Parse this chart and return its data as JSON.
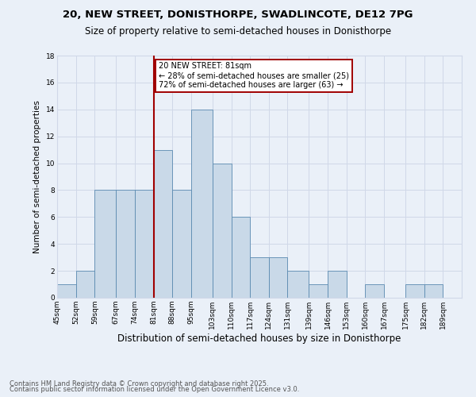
{
  "title1": "20, NEW STREET, DONISTHORPE, SWADLINCOTE, DE12 7PG",
  "title2": "Size of property relative to semi-detached houses in Donisthorpe",
  "xlabel": "Distribution of semi-detached houses by size in Donisthorpe",
  "ylabel": "Number of semi-detached properties",
  "footnote1": "Contains HM Land Registry data © Crown copyright and database right 2025.",
  "footnote2": "Contains public sector information licensed under the Open Government Licence v3.0.",
  "annotation_title": "20 NEW STREET: 81sqm",
  "annotation_line1": "← 28% of semi-detached houses are smaller (25)",
  "annotation_line2": "72% of semi-detached houses are larger (63) →",
  "bar_left_edges": [
    45,
    52,
    59,
    67,
    74,
    81,
    88,
    95,
    103,
    110,
    117,
    124,
    131,
    139,
    146,
    153,
    160,
    167,
    175,
    182
  ],
  "bar_widths": [
    7,
    7,
    8,
    7,
    7,
    7,
    7,
    8,
    7,
    7,
    7,
    7,
    8,
    7,
    7,
    7,
    7,
    8,
    7,
    7
  ],
  "bar_heights": [
    1,
    2,
    8,
    8,
    8,
    11,
    8,
    14,
    10,
    6,
    3,
    3,
    2,
    1,
    2,
    0,
    1,
    0,
    1,
    1
  ],
  "bar_color": "#c9d9e8",
  "bar_edge_color": "#5a8ab0",
  "vline_x": 81,
  "vline_color": "#a00000",
  "grid_color": "#d0d8e8",
  "annotation_box_color": "#ffffff",
  "annotation_box_edge": "#a00000",
  "ylim": [
    0,
    18
  ],
  "yticks": [
    0,
    2,
    4,
    6,
    8,
    10,
    12,
    14,
    16,
    18
  ],
  "xtick_labels": [
    "45sqm",
    "52sqm",
    "59sqm",
    "67sqm",
    "74sqm",
    "81sqm",
    "88sqm",
    "95sqm",
    "103sqm",
    "110sqm",
    "117sqm",
    "124sqm",
    "131sqm",
    "139sqm",
    "146sqm",
    "153sqm",
    "160sqm",
    "167sqm",
    "175sqm",
    "182sqm",
    "189sqm"
  ],
  "bg_color": "#eaf0f8",
  "title1_fontsize": 9.5,
  "title2_fontsize": 8.5,
  "xlabel_fontsize": 8.5,
  "ylabel_fontsize": 7.5,
  "tick_fontsize": 6.5,
  "annot_fontsize": 7,
  "footnote_fontsize": 6
}
